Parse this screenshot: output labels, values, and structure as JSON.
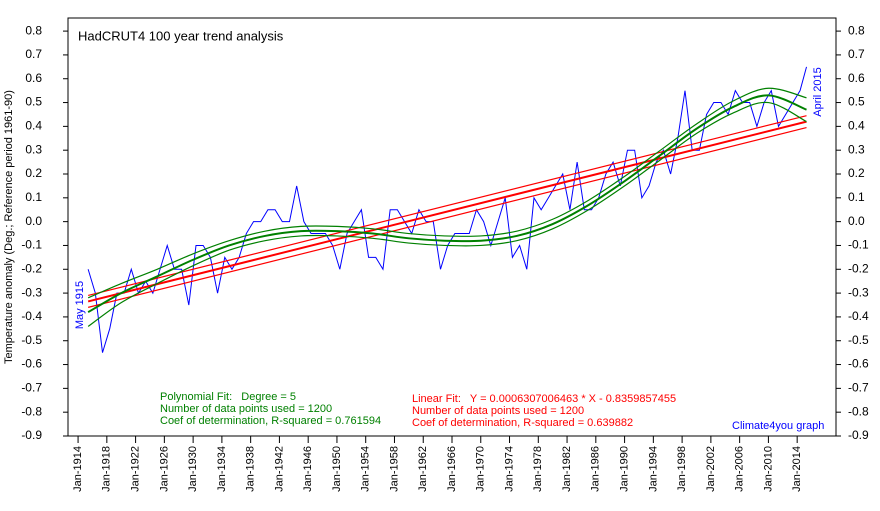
{
  "chart_data": {
    "type": "line",
    "title": "HadCRUT4 100 year trend analysis",
    "y_label": "Temperature anomaly (Deg.; Reference period 1961-90)",
    "start_label": "May 1915",
    "end_label": "April 2015",
    "credit": "Climate4you graph",
    "poly_stats": [
      "Polynomial Fit:   Degree = 5",
      "Number of data points used = 1200",
      "Coef of determination, R-squared = 0.761594"
    ],
    "linear_stats": [
      "Linear Fit:   Y = 0.0006307006463 * X - 0.8359857455",
      "Number of data points used = 1200",
      "Coef of determination, R-squared = 0.639882"
    ],
    "poly_color": "#008000",
    "linear_color": "#ff0000",
    "xlim": [
      1912.6,
      2019.4
    ],
    "ylim": [
      -0.9,
      0.855
    ],
    "xticks": [
      {
        "value": 1914,
        "label": "Jan-1914"
      },
      {
        "value": 1918,
        "label": "Jan-1918"
      },
      {
        "value": 1922,
        "label": "Jan-1922"
      },
      {
        "value": 1926,
        "label": "Jan-1926"
      },
      {
        "value": 1930,
        "label": "Jan-1930"
      },
      {
        "value": 1934,
        "label": "Jan-1934"
      },
      {
        "value": 1938,
        "label": "Jan-1938"
      },
      {
        "value": 1942,
        "label": "Jan-1942"
      },
      {
        "value": 1946,
        "label": "Jan-1946"
      },
      {
        "value": 1950,
        "label": "Jan-1950"
      },
      {
        "value": 1954,
        "label": "Jan-1954"
      },
      {
        "value": 1958,
        "label": "Jan-1958"
      },
      {
        "value": 1962,
        "label": "Jan-1962"
      },
      {
        "value": 1966,
        "label": "Jan-1966"
      },
      {
        "value": 1970,
        "label": "Jan-1970"
      },
      {
        "value": 1974,
        "label": "Jan-1974"
      },
      {
        "value": 1978,
        "label": "Jan-1978"
      },
      {
        "value": 1982,
        "label": "Jan-1982"
      },
      {
        "value": 1986,
        "label": "Jan-1986"
      },
      {
        "value": 1990,
        "label": "Jan-1990"
      },
      {
        "value": 1994,
        "label": "Jan-1994"
      },
      {
        "value": 1998,
        "label": "Jan-1998"
      },
      {
        "value": 2002,
        "label": "Jan-2002"
      },
      {
        "value": 2006,
        "label": "Jan-2006"
      },
      {
        "value": 2010,
        "label": "Jan-2010"
      },
      {
        "value": 2014,
        "label": "Jan-2014"
      }
    ],
    "yticks": [
      0.8,
      0.7,
      0.6,
      0.5,
      0.4,
      0.3,
      0.2,
      0.1,
      {
        "value": 0,
        "label": "0.0"
      },
      -0.1,
      -0.2,
      -0.3,
      -0.4,
      -0.5,
      -0.6,
      -0.7,
      -0.8,
      -0.9
    ],
    "series": [
      {
        "color": "#0000ff",
        "x": [
          1915.4,
          1916.4,
          1917.4,
          1918.4,
          1919.4,
          1920.4,
          1921.4,
          1922.4,
          1923.4,
          1924.4,
          1925.4,
          1926.4,
          1927.4,
          1928.4,
          1929.4,
          1930.4,
          1931.4,
          1932.4,
          1933.4,
          1934.4,
          1935.4,
          1936.4,
          1937.4,
          1938.4,
          1939.4,
          1940.4,
          1941.4,
          1942.4,
          1943.4,
          1944.4,
          1945.4,
          1946.4,
          1947.4,
          1948.4,
          1949.4,
          1950.4,
          1951.4,
          1952.4,
          1953.4,
          1954.4,
          1955.4,
          1956.4,
          1957.4,
          1958.4,
          1959.4,
          1960.4,
          1961.4,
          1962.4,
          1963.4,
          1964.4,
          1965.4,
          1966.4,
          1967.4,
          1968.4,
          1969.4,
          1970.4,
          1971.4,
          1972.4,
          1973.4,
          1974.4,
          1975.4,
          1976.4,
          1977.4,
          1978.4,
          1979.4,
          1980.4,
          1981.4,
          1982.4,
          1983.4,
          1984.4,
          1985.4,
          1986.4,
          1987.4,
          1988.4,
          1989.4,
          1990.4,
          1991.4,
          1992.4,
          1993.4,
          1994.4,
          1995.4,
          1996.4,
          1997.4,
          1998.4,
          1999.4,
          2000.4,
          2001.4,
          2002.4,
          2003.4,
          2004.4,
          2005.4,
          2006.4,
          2007.4,
          2008.4,
          2009.4,
          2010.4,
          2011.4,
          2012.4,
          2013.4,
          2014.4,
          2015.3
        ],
        "values": [
          -0.2,
          -0.3,
          -0.55,
          -0.45,
          -0.3,
          -0.3,
          -0.2,
          -0.3,
          -0.25,
          -0.3,
          -0.2,
          -0.1,
          -0.2,
          -0.2,
          -0.35,
          -0.1,
          -0.1,
          -0.15,
          -0.3,
          -0.15,
          -0.2,
          -0.15,
          -0.05,
          0.0,
          0.0,
          0.05,
          0.05,
          0.0,
          0.0,
          0.15,
          0.0,
          -0.05,
          -0.05,
          -0.05,
          -0.1,
          -0.2,
          -0.05,
          0.0,
          0.05,
          -0.15,
          -0.15,
          -0.2,
          0.05,
          0.05,
          0.0,
          -0.05,
          0.05,
          0.0,
          0.0,
          -0.2,
          -0.1,
          -0.05,
          -0.05,
          -0.05,
          0.05,
          0.0,
          -0.1,
          0.0,
          0.1,
          -0.15,
          -0.1,
          -0.2,
          0.1,
          0.05,
          0.1,
          0.15,
          0.2,
          0.05,
          0.25,
          0.05,
          0.05,
          0.1,
          0.2,
          0.25,
          0.15,
          0.3,
          0.3,
          0.1,
          0.15,
          0.25,
          0.3,
          0.2,
          0.35,
          0.55,
          0.3,
          0.3,
          0.45,
          0.5,
          0.5,
          0.45,
          0.55,
          0.5,
          0.5,
          0.4,
          0.5,
          0.55,
          0.4,
          0.45,
          0.5,
          0.55,
          0.65
        ]
      }
    ],
    "poly_fit": {
      "x": [
        1915.4,
        1920,
        1925,
        1930,
        1935,
        1940,
        1945,
        1950,
        1955,
        1960,
        1965,
        1970,
        1975,
        1980,
        1985,
        1990,
        1995,
        2000,
        2005,
        2010,
        2015.3
      ],
      "values": [
        -0.38,
        -0.3,
        -0.23,
        -0.16,
        -0.1,
        -0.06,
        -0.04,
        -0.04,
        -0.05,
        -0.07,
        -0.08,
        -0.08,
        -0.06,
        -0.01,
        0.07,
        0.17,
        0.28,
        0.39,
        0.48,
        0.53,
        0.47
      ],
      "upper": [
        -0.32,
        -0.26,
        -0.2,
        -0.135,
        -0.08,
        -0.04,
        -0.02,
        -0.02,
        -0.03,
        -0.05,
        -0.06,
        -0.06,
        -0.04,
        0.01,
        0.09,
        0.19,
        0.3,
        0.41,
        0.505,
        0.56,
        0.52
      ],
      "lower": [
        -0.44,
        -0.34,
        -0.26,
        -0.185,
        -0.12,
        -0.08,
        -0.06,
        -0.06,
        -0.07,
        -0.09,
        -0.1,
        -0.1,
        -0.08,
        -0.03,
        0.05,
        0.15,
        0.26,
        0.37,
        0.455,
        0.5,
        0.42
      ]
    },
    "linear_fit": {
      "x": [
        1915.4,
        2015.3
      ],
      "values": [
        -0.335,
        0.42
      ],
      "upper": [
        -0.31,
        0.445
      ],
      "lower": [
        -0.36,
        0.395
      ]
    }
  }
}
